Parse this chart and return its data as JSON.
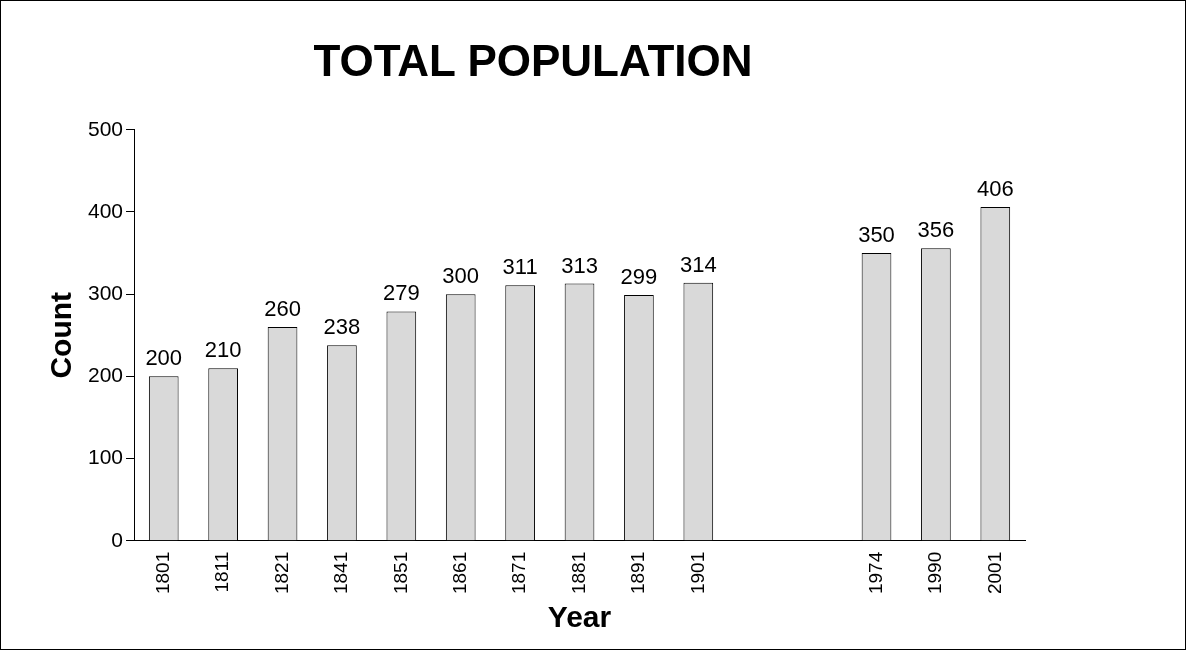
{
  "chart_data": {
    "type": "bar",
    "title": "TOTAL POPULATION",
    "xlabel": "Year",
    "ylabel": "Count",
    "categories": [
      "1801",
      "1811",
      "1821",
      "1841",
      "1851",
      "1861",
      "1871",
      "1881",
      "1891",
      "1901",
      null,
      null,
      "1974",
      "1990",
      "2001"
    ],
    "values": [
      200,
      210,
      260,
      238,
      279,
      300,
      311,
      313,
      299,
      314,
      null,
      null,
      350,
      356,
      406
    ],
    "color": "#d9d9d9",
    "ylim": [
      0,
      500
    ],
    "yticks": [
      0,
      100,
      200,
      300,
      400,
      500
    ],
    "grid": false,
    "legend": false,
    "data_labels": true
  }
}
